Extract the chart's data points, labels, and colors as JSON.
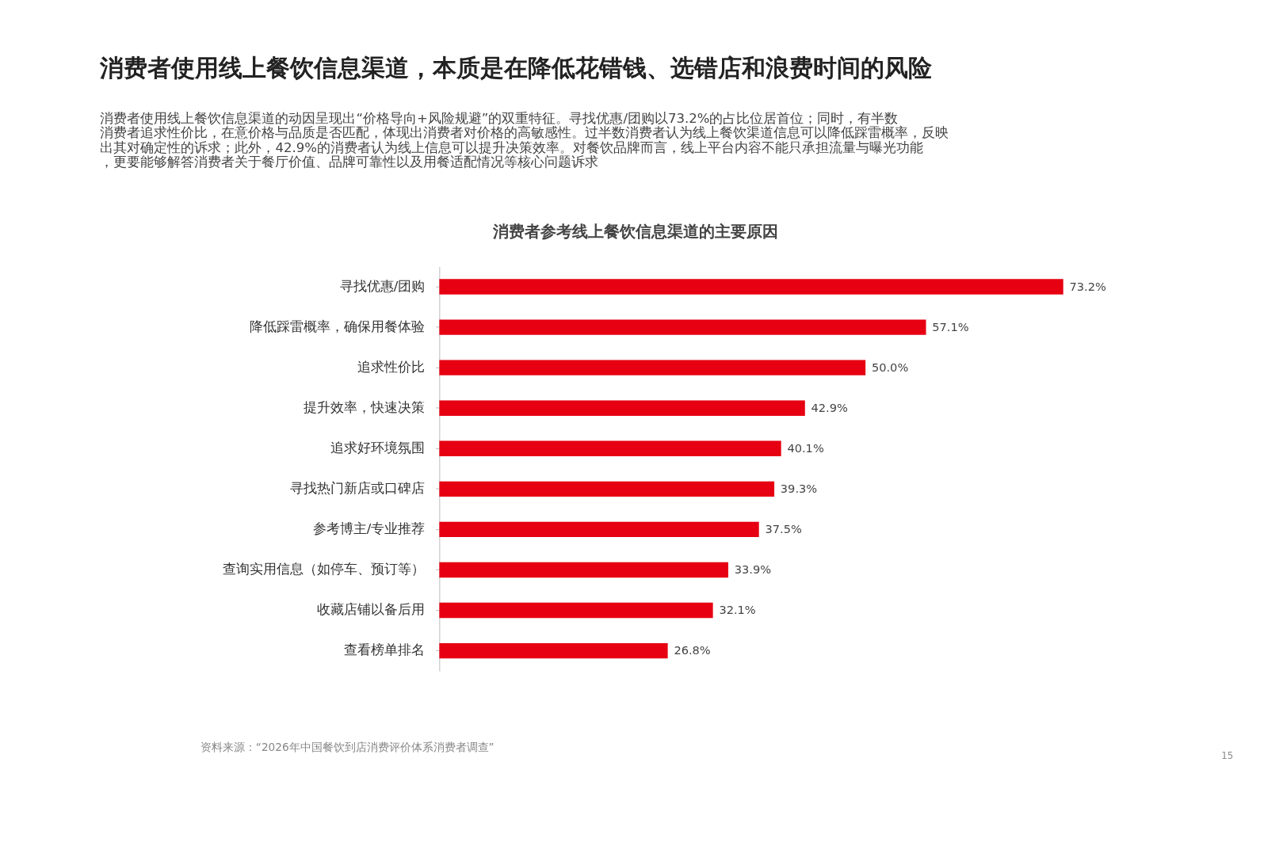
{
  "chart_data": {
    "type": "bar",
    "orientation": "horizontal",
    "title": "消费者使用线上餐饮信息渠道，本质是在降低花错钱、选错店和浪费时间的风险",
    "subtitle": "消费者使用线上餐饮信息渠道的动因呈现出“价格导向+风险规避”的双重特征。寻找优惠/团购以73.2%的占比位居首位；同时，有半数消费者追求性价比，在意价格与品质是否匹配，体现出消费者对价格的高敏感性。过半数消费者认为线上餐饮渠道信息可以降低踩雷概率，反映出其对确定性的诉求；此外，42.9%的消费者认为线上信息可以提升决策效率。对餐饮品牌而言，线上平台内容不能只承担流量与曝光功能，更要能够解答消费者关于餐厅价值、品牌可靠性以及用餐适配情况等核心问题诉求",
    "annotations": [
      "消费者参考线上餐饮信息渠道的主要原因",
      "资料来源：“2026年中国餐饮到店消费评价体系消费者调查”",
      "15"
    ],
    "categories": [
      "寻找优惠/团购",
      "降低踩雷概率，确保用餐体验",
      "追求性价比",
      "提升效率，快速决策",
      "追求好环境氛围",
      "寻找热门新店或口碑店",
      "参考博主/专业推荐",
      "查询实用信息（如停车、预订等）",
      "收藏店铺以备后用",
      "查看榜单排名"
    ],
    "values": [
      73.2,
      57.1,
      50.0,
      42.9,
      40.1,
      39.3,
      37.5,
      33.9,
      32.1,
      26.8
    ],
    "value_labels": [
      "73.2%",
      "57.1%",
      "50.0%",
      "42.9%",
      "40.1%",
      "39.3%",
      "37.5%",
      "33.9%",
      "32.1%",
      "26.8%"
    ],
    "color": "#e60012",
    "grid": false,
    "tick_labels": "y"
  }
}
